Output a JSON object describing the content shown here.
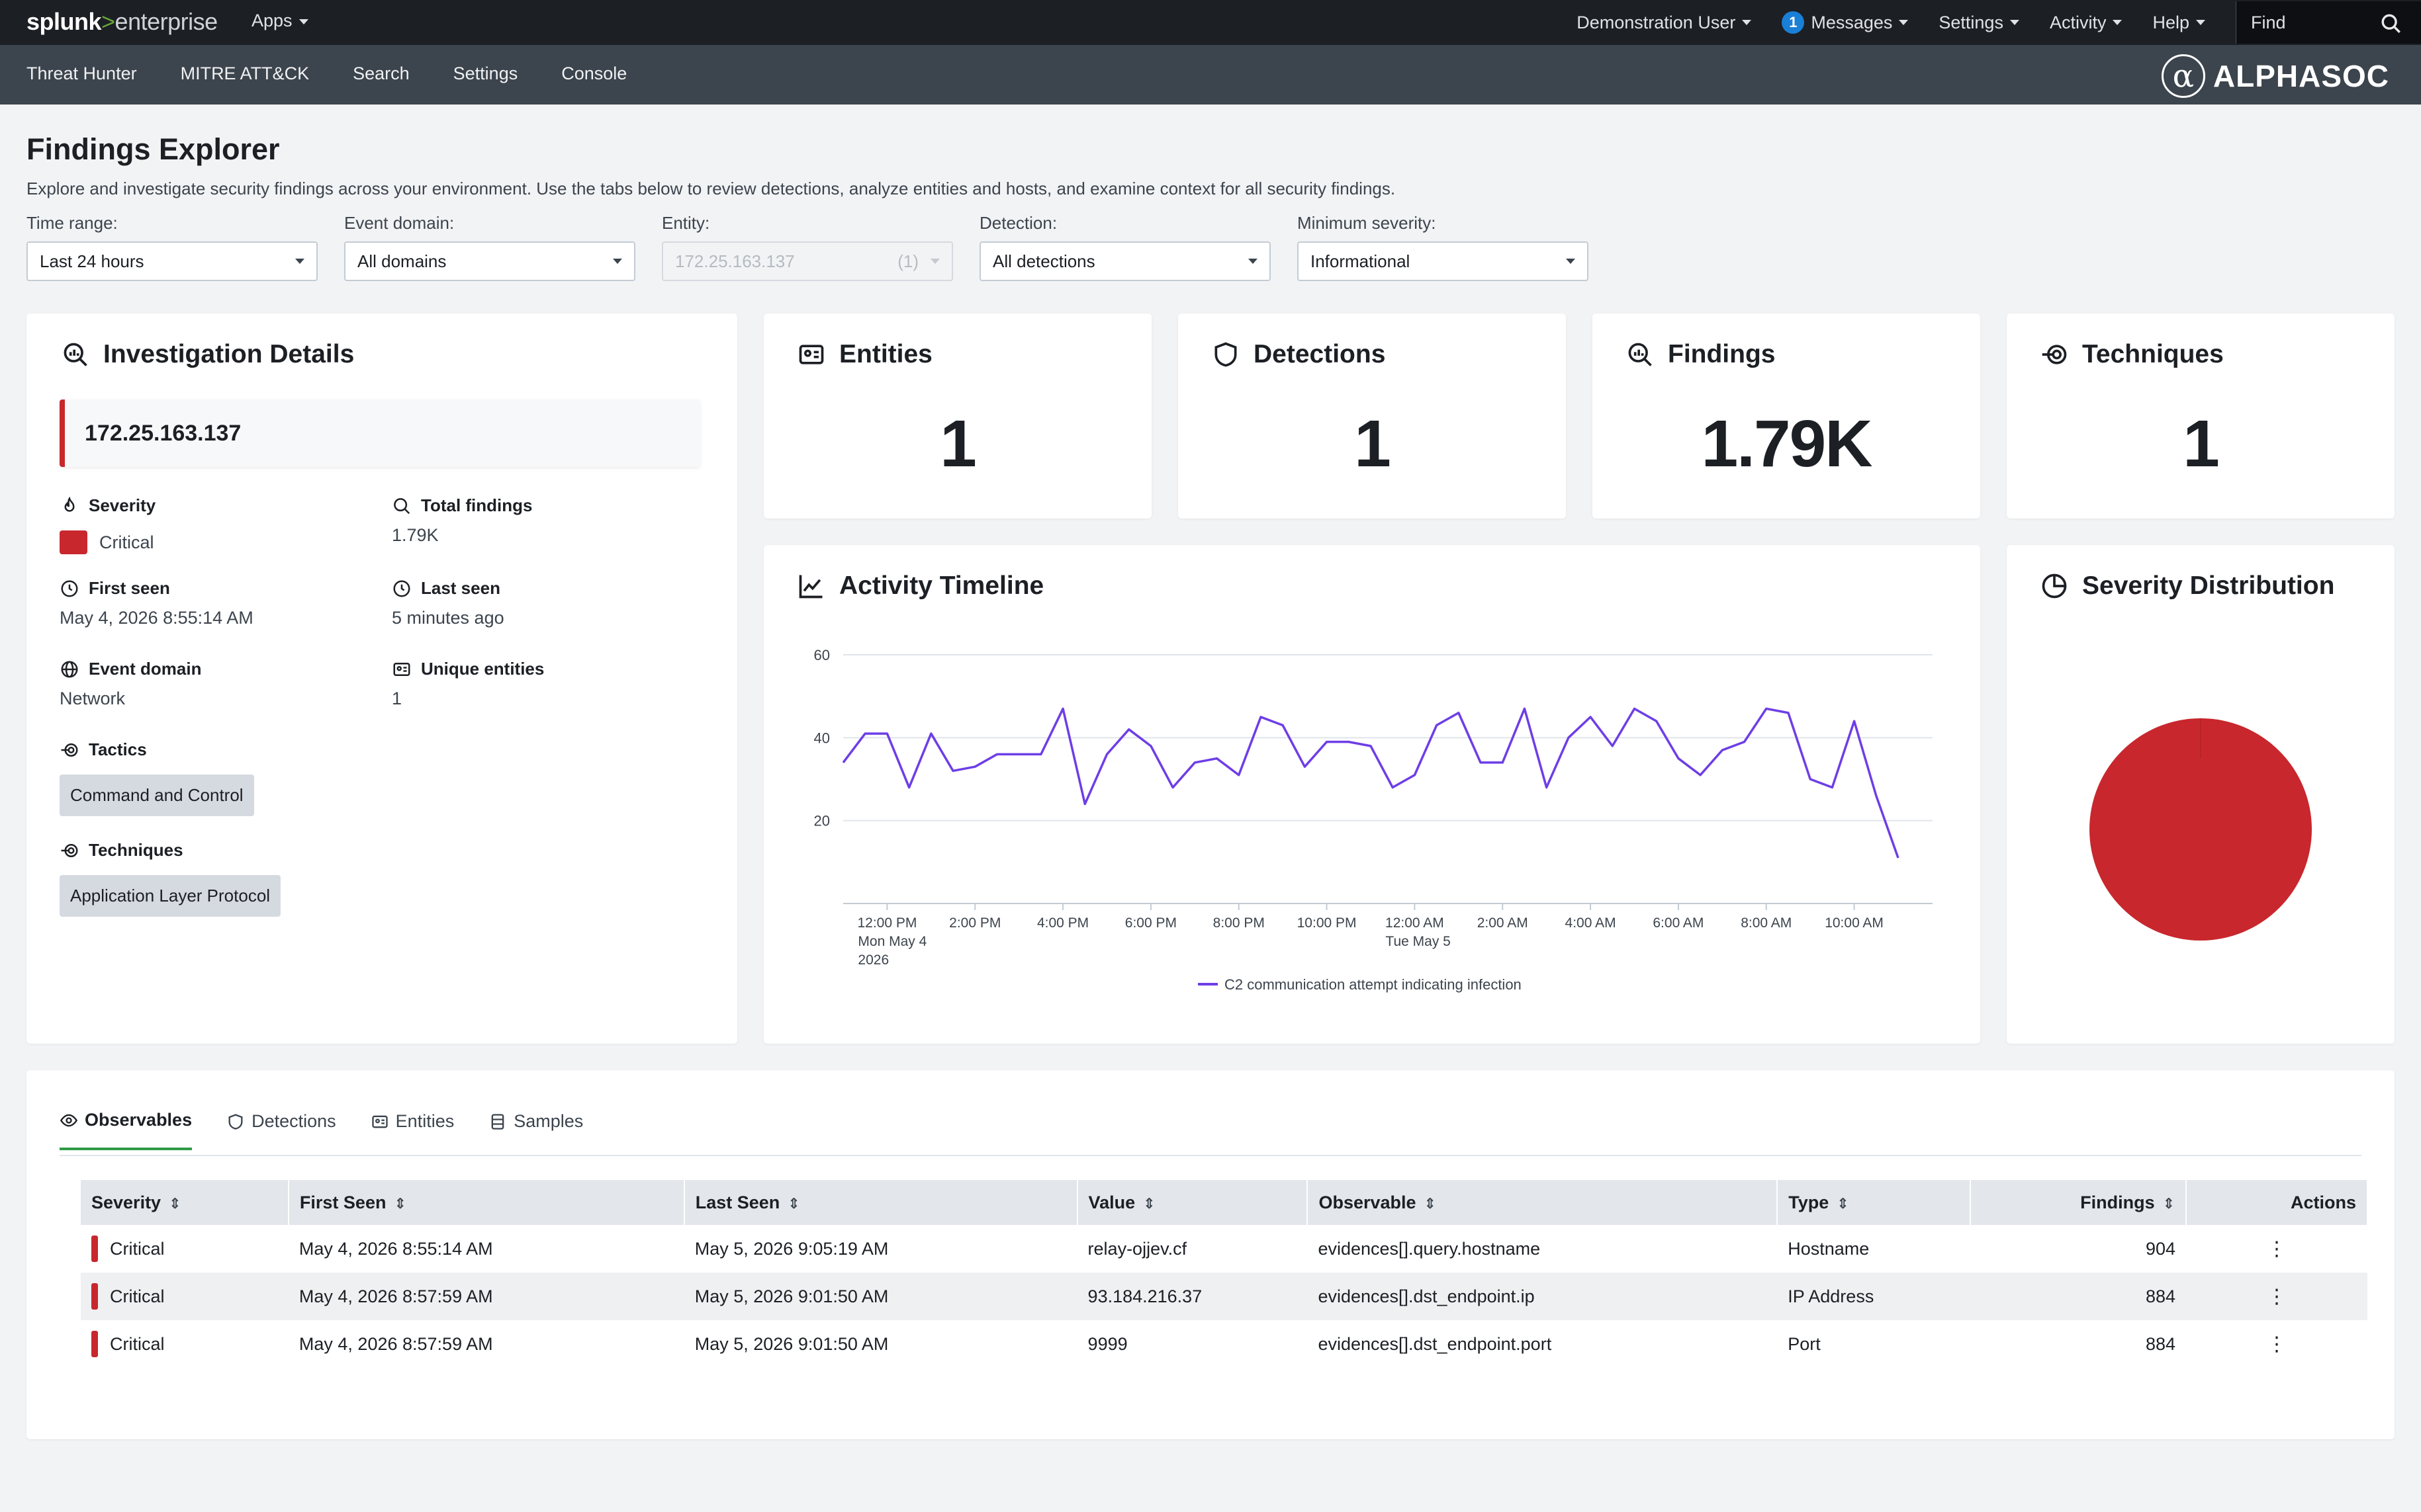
{
  "topbar": {
    "brand_part1": "splunk",
    "brand_part2": ">",
    "brand_part3": "enterprise",
    "apps_label": "Apps",
    "user_label": "Demonstration User",
    "messages_count": "1",
    "messages_label": "Messages",
    "settings_label": "Settings",
    "activity_label": "Activity",
    "help_label": "Help",
    "find_placeholder": "Find"
  },
  "appbar": {
    "nav": [
      "Threat Hunter",
      "MITRE ATT&CK",
      "Search",
      "Settings",
      "Console"
    ],
    "logo_symbol": "α",
    "logo_text": "ALPHASOC"
  },
  "header": {
    "title": "Findings Explorer",
    "description": "Explore and investigate security findings across your environment. Use the tabs below to review detections, analyze entities and hosts, and examine context for all security findings."
  },
  "filters": [
    {
      "label": "Time range:",
      "value": "Last 24 hours",
      "disabled": false
    },
    {
      "label": "Event domain:",
      "value": "All domains",
      "disabled": false
    },
    {
      "label": "Entity:",
      "value": "172.25.163.137",
      "count": "(1)",
      "disabled": true
    },
    {
      "label": "Detection:",
      "value": "All detections",
      "disabled": false
    },
    {
      "label": "Minimum severity:",
      "value": "Informational",
      "disabled": false
    }
  ],
  "investigation": {
    "title": "Investigation Details",
    "entity": "172.25.163.137",
    "severity_label": "Severity",
    "severity_value": "Critical",
    "total_findings_label": "Total findings",
    "total_findings_value": "1.79K",
    "first_seen_label": "First seen",
    "first_seen_value": "May 4, 2026 8:55:14 AM",
    "last_seen_label": "Last seen",
    "last_seen_value": "5 minutes ago",
    "event_domain_label": "Event domain",
    "event_domain_value": "Network",
    "unique_entities_label": "Unique entities",
    "unique_entities_value": "1",
    "tactics_label": "Tactics",
    "tactics": [
      "Command and Control"
    ],
    "techniques_label": "Techniques",
    "techniques": [
      "Application Layer Protocol"
    ]
  },
  "stats": {
    "entities": {
      "label": "Entities",
      "value": "1"
    },
    "detections": {
      "label": "Detections",
      "value": "1"
    },
    "findings": {
      "label": "Findings",
      "value": "1.79K"
    },
    "techniques": {
      "label": "Techniques",
      "value": "1"
    }
  },
  "timeline": {
    "title": "Activity Timeline"
  },
  "severity_distribution": {
    "title": "Severity Distribution"
  },
  "colors": {
    "critical": "#c8272d",
    "series": "#6e3ee6",
    "accent_tab": "#2e9b45"
  },
  "chart_data": [
    {
      "type": "line",
      "title": "Activity Timeline",
      "x_tick_labels": [
        "12:00 PM",
        "2:00 PM",
        "4:00 PM",
        "6:00 PM",
        "8:00 PM",
        "10:00 PM",
        "12:00 AM",
        "2:00 AM",
        "4:00 AM",
        "6:00 AM",
        "8:00 AM",
        "10:00 AM"
      ],
      "x_tick_sublabels": [
        [
          "Mon May 4",
          "2026"
        ],
        [],
        [],
        [],
        [],
        [],
        [
          "Tue May 5"
        ],
        [],
        [],
        [],
        [],
        []
      ],
      "y_ticks": [
        20,
        40,
        60
      ],
      "ylim": [
        0,
        60
      ],
      "grid": true,
      "legend_position": "bottom",
      "series": [
        {
          "name": "C2 communication attempt indicating infection",
          "color": "#6e3ee6",
          "start_time": "May 4, 2026 11:00 AM",
          "interval_minutes": 30,
          "values": [
            34,
            41,
            41,
            28,
            41,
            32,
            33,
            36,
            36,
            36,
            47,
            24,
            36,
            42,
            38,
            28,
            34,
            35,
            31,
            45,
            43,
            33,
            39,
            39,
            38,
            28,
            31,
            43,
            46,
            34,
            34,
            47,
            28,
            40,
            45,
            38,
            47,
            44,
            35,
            31,
            37,
            39,
            47,
            46,
            30,
            28,
            44,
            26,
            11
          ]
        }
      ]
    },
    {
      "type": "pie",
      "title": "Severity Distribution",
      "categories": [
        "Critical"
      ],
      "values": [
        1790
      ],
      "colors": [
        "#c8272d"
      ]
    }
  ],
  "observables": {
    "tabs": [
      "Observables",
      "Detections",
      "Entities",
      "Samples"
    ],
    "columns": [
      "Severity",
      "First Seen",
      "Last Seen",
      "Value",
      "Observable",
      "Type",
      "Findings",
      "Actions"
    ],
    "rows": [
      {
        "severity": "Critical",
        "first_seen": "May 4, 2026 8:55:14 AM",
        "last_seen": "May 5, 2026 9:05:19 AM",
        "value": "relay-ojjev.cf",
        "observable": "evidences[].query.hostname",
        "type": "Hostname",
        "findings": "904",
        "actions": "⋮"
      },
      {
        "severity": "Critical",
        "first_seen": "May 4, 2026 8:57:59 AM",
        "last_seen": "May 5, 2026 9:01:50 AM",
        "value": "93.184.216.37",
        "observable": "evidences[].dst_endpoint.ip",
        "type": "IP Address",
        "findings": "884",
        "actions": "⋮"
      },
      {
        "severity": "Critical",
        "first_seen": "May 4, 2026 8:57:59 AM",
        "last_seen": "May 5, 2026 9:01:50 AM",
        "value": "9999",
        "observable": "evidences[].dst_endpoint.port",
        "type": "Port",
        "findings": "884",
        "actions": "⋮"
      }
    ]
  }
}
